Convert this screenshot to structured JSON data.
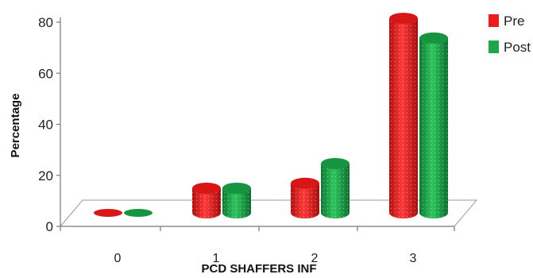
{
  "chart_data": {
    "type": "bar",
    "xlabel": "PCD SHAFFERS INF",
    "ylabel": "Percentage",
    "categories": [
      "0",
      "1",
      "2",
      "3"
    ],
    "series": [
      {
        "name": "Pre",
        "values": [
          0,
          10,
          12,
          79
        ],
        "color": "#ee1c1c"
      },
      {
        "name": "Post",
        "values": [
          0,
          10,
          20,
          71
        ],
        "color": "#1aa84a"
      }
    ],
    "ylim": [
      0,
      80
    ],
    "yticks": [
      "0",
      "20",
      "40",
      "60",
      "80"
    ],
    "legend_position": "right",
    "style": "3d-cylinder"
  }
}
